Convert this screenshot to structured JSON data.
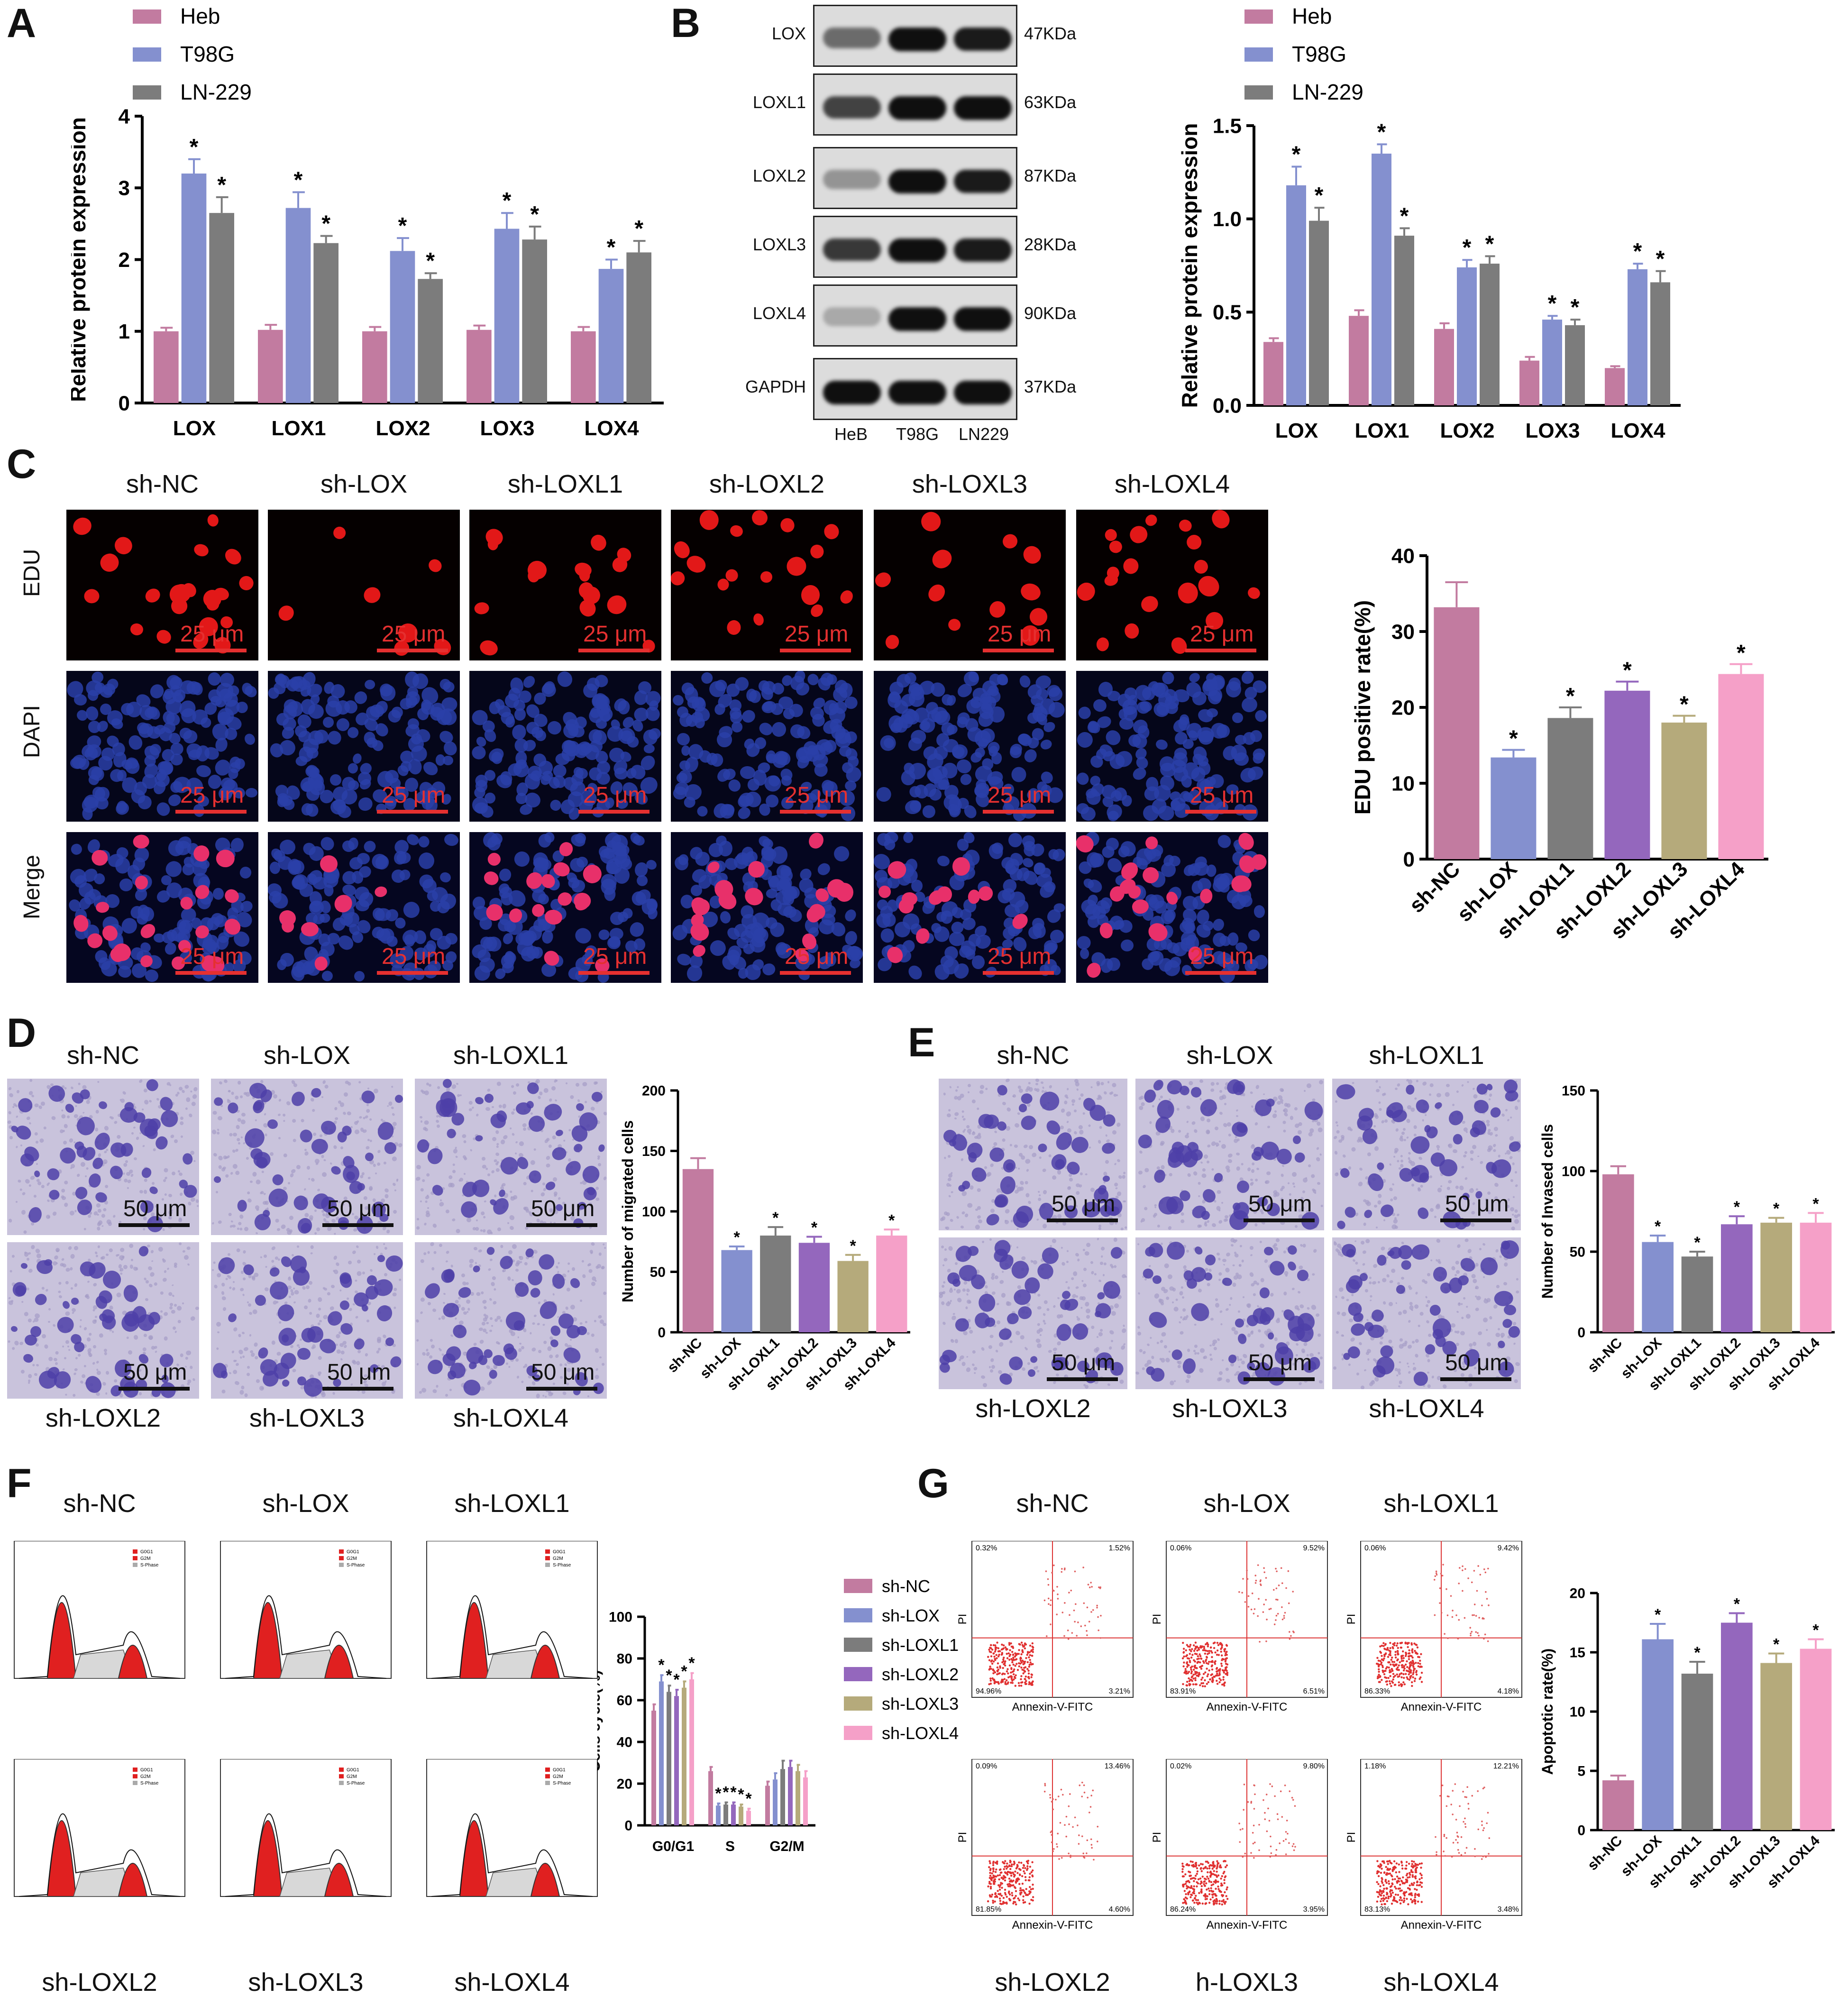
{
  "panels": {
    "A": "A",
    "B": "B",
    "C": "C",
    "D": "D",
    "E": "E",
    "F": "F",
    "G": "G"
  },
  "labels": {
    "scale25": "25 μm",
    "scale50": "50 μm",
    "row_edu": "EDU",
    "row_dapi": "DAPI",
    "row_merge": "Merge",
    "groups": [
      "sh-NC",
      "sh-LOX",
      "sh-LOXL1",
      "sh-LOXL2",
      "sh-LOXL3",
      "sh-LOXL4"
    ],
    "g_bottom_labels": [
      "sh-LOXL2",
      "h-LOXL3",
      "sh-LOXL4"
    ],
    "flow_x": "Annexin-V-FITC",
    "flow_y": "PI",
    "flow_quadrants": [
      [
        "0.32%",
        "1.52%",
        "94.96%",
        "3.21%"
      ],
      [
        "0.06%",
        "9.52%",
        "83.91%",
        "6.51%"
      ],
      [
        "0.06%",
        "9.42%",
        "86.33%",
        "4.18%"
      ],
      [
        "0.09%",
        "13.46%",
        "81.85%",
        "4.60%"
      ],
      [
        "0.02%",
        "9.80%",
        "86.24%",
        "3.95%"
      ],
      [
        "1.18%",
        "12.21%",
        "83.13%",
        "3.48%"
      ]
    ],
    "cc_legend": [
      "G0G1",
      "G2M",
      "S-Phase"
    ]
  },
  "western": {
    "proteins": [
      "LOX",
      "LOXL1",
      "LOXL2",
      "LOXL3",
      "LOXL4",
      "GAPDH"
    ],
    "sizes": [
      "47KDa",
      "63KDa",
      "87KDa",
      "28KDa",
      "90KDa",
      "37KDa"
    ],
    "lanes": [
      "HeB",
      "T98G",
      "LN229"
    ]
  },
  "chart_data": [
    {
      "id": "A",
      "type": "bar",
      "categories": [
        "LOX",
        "LOX1",
        "LOX2",
        "LOX3",
        "LOX4"
      ],
      "series": [
        {
          "name": "Heb",
          "values": [
            1.0,
            1.02,
            1.0,
            1.02,
            1.0
          ],
          "err": [
            0.05,
            0.07,
            0.06,
            0.06,
            0.06
          ]
        },
        {
          "name": "T98G",
          "values": [
            3.2,
            2.72,
            2.12,
            2.43,
            1.87
          ],
          "err": [
            0.2,
            0.22,
            0.18,
            0.22,
            0.13
          ]
        },
        {
          "name": "LN-229",
          "values": [
            2.65,
            2.23,
            1.73,
            2.28,
            2.1
          ],
          "err": [
            0.22,
            0.1,
            0.08,
            0.18,
            0.16
          ]
        }
      ],
      "sig": [
        [
          false,
          true,
          true
        ],
        [
          false,
          true,
          true
        ],
        [
          false,
          true,
          true
        ],
        [
          false,
          true,
          true
        ],
        [
          false,
          true,
          true
        ]
      ],
      "ylabel": "Relative protein expression",
      "ylim": [
        0,
        4
      ],
      "yticks": [
        0,
        1,
        2,
        3,
        4
      ],
      "colors": [
        "#c27ba0",
        "#8490cf",
        "#7c7c7c"
      ],
      "legend": "top-left"
    },
    {
      "id": "B",
      "type": "bar",
      "categories": [
        "LOX",
        "LOX1",
        "LOX2",
        "LOX3",
        "LOX4"
      ],
      "series": [
        {
          "name": "Heb",
          "values": [
            0.34,
            0.48,
            0.41,
            0.24,
            0.2
          ],
          "err": [
            0.02,
            0.03,
            0.03,
            0.02,
            0.01
          ]
        },
        {
          "name": "T98G",
          "values": [
            1.18,
            1.35,
            0.74,
            0.46,
            0.73
          ],
          "err": [
            0.1,
            0.05,
            0.04,
            0.02,
            0.03
          ]
        },
        {
          "name": "LN-229",
          "values": [
            0.99,
            0.91,
            0.76,
            0.43,
            0.66
          ],
          "err": [
            0.07,
            0.04,
            0.04,
            0.03,
            0.06
          ]
        }
      ],
      "sig": [
        [
          false,
          true,
          true
        ],
        [
          false,
          true,
          true
        ],
        [
          false,
          true,
          true
        ],
        [
          false,
          true,
          true
        ],
        [
          false,
          true,
          true
        ]
      ],
      "ylabel": "Relative protein expression",
      "ylim": [
        0,
        1.5
      ],
      "yticks": [
        "0.0",
        "0.5",
        "1.0",
        "1.5"
      ],
      "colors": [
        "#c27ba0",
        "#8490cf",
        "#7c7c7c"
      ],
      "legend": "top-left"
    },
    {
      "id": "C",
      "type": "bar",
      "categories": [
        "sh-NC",
        "sh-LOX",
        "sh-LOXL1",
        "sh-LOXL2",
        "sh-LOXL3",
        "sh-LOXL4"
      ],
      "values": [
        33.2,
        13.4,
        18.6,
        22.2,
        18.0,
        24.4
      ],
      "err": [
        3.3,
        1.0,
        1.4,
        1.2,
        0.9,
        1.3
      ],
      "sig": [
        false,
        true,
        true,
        true,
        true,
        true
      ],
      "ylabel": "EDU positive rate(%)",
      "ylim": [
        0,
        40
      ],
      "yticks": [
        0,
        10,
        20,
        30,
        40
      ],
      "colors": [
        "#c27ba0",
        "#8490cf",
        "#7c7c7c",
        "#9467bd",
        "#b5aa7b",
        "#f5a0c8"
      ]
    },
    {
      "id": "D",
      "type": "bar",
      "categories": [
        "sh-NC",
        "sh-LOX",
        "sh-LOXL1",
        "sh-LOXL2",
        "sh-LOXL3",
        "sh-LOXL4"
      ],
      "values": [
        135,
        68,
        80,
        74,
        59,
        80
      ],
      "err": [
        9,
        3,
        7,
        5,
        5,
        5
      ],
      "sig": [
        false,
        true,
        true,
        true,
        true,
        true
      ],
      "ylabel": "Number of migrated cells",
      "ylim": [
        0,
        200
      ],
      "yticks": [
        0,
        50,
        100,
        150,
        200
      ],
      "colors": [
        "#c27ba0",
        "#8490cf",
        "#7c7c7c",
        "#9467bd",
        "#b5aa7b",
        "#f5a0c8"
      ]
    },
    {
      "id": "E",
      "type": "bar",
      "categories": [
        "sh-NC",
        "sh-LOX",
        "sh-LOXL1",
        "sh-LOXL2",
        "sh-LOXL3",
        "sh-LOXL4"
      ],
      "values": [
        98,
        56,
        47,
        67,
        68,
        68
      ],
      "err": [
        5,
        4,
        3,
        5,
        3,
        6
      ],
      "sig": [
        false,
        true,
        true,
        true,
        true,
        true
      ],
      "ylabel": "Number of Invased cells",
      "ylim": [
        0,
        150
      ],
      "yticks": [
        0,
        50,
        100,
        150
      ],
      "colors": [
        "#c27ba0",
        "#8490cf",
        "#7c7c7c",
        "#9467bd",
        "#b5aa7b",
        "#f5a0c8"
      ]
    },
    {
      "id": "F",
      "type": "bar",
      "categories": [
        "G0/G1",
        "S",
        "G2/M"
      ],
      "series": [
        {
          "name": "sh-NC",
          "values": [
            55,
            26,
            19
          ],
          "err": [
            3,
            2,
            2
          ]
        },
        {
          "name": "sh-LOX",
          "values": [
            69,
            9.5,
            22
          ],
          "err": [
            3,
            1,
            3
          ]
        },
        {
          "name": "sh-LOXL1",
          "values": [
            64,
            10,
            27
          ],
          "err": [
            3,
            1,
            4
          ]
        },
        {
          "name": "sh-LOXL2",
          "values": [
            62,
            10,
            28
          ],
          "err": [
            3,
            1,
            3
          ]
        },
        {
          "name": "sh-LOXL3",
          "values": [
            66,
            9,
            26
          ],
          "err": [
            3,
            1,
            3
          ]
        },
        {
          "name": "sh-LOXL4",
          "values": [
            70,
            7,
            23
          ],
          "err": [
            3,
            1,
            3
          ]
        }
      ],
      "sig": [
        [
          false,
          true,
          true,
          true,
          true,
          true
        ],
        [
          false,
          true,
          true,
          true,
          true,
          true
        ],
        [
          false,
          false,
          false,
          false,
          false,
          false
        ]
      ],
      "ylabel": "Cells cycle(%)",
      "ylim": [
        0,
        100
      ],
      "yticks": [
        0,
        20,
        40,
        60,
        80,
        100
      ],
      "colors": [
        "#c27ba0",
        "#8490cf",
        "#7c7c7c",
        "#9467bd",
        "#b5aa7b",
        "#f5a0c8"
      ],
      "legend": "top-right"
    },
    {
      "id": "G",
      "type": "bar",
      "categories": [
        "sh-NC",
        "sh-LOX",
        "sh-LOXL1",
        "sh-LOXL2",
        "sh-LOXL3",
        "sh-LOXL4"
      ],
      "values": [
        4.2,
        16.1,
        13.2,
        17.5,
        14.1,
        15.3
      ],
      "err": [
        0.4,
        1.3,
        1.0,
        0.8,
        0.8,
        0.8
      ],
      "sig": [
        false,
        true,
        true,
        true,
        true,
        true
      ],
      "ylabel": "Apoptotic rate(%)",
      "ylim": [
        0,
        20
      ],
      "yticks": [
        0,
        5,
        10,
        15,
        20
      ],
      "colors": [
        "#c27ba0",
        "#8490cf",
        "#7c7c7c",
        "#9467bd",
        "#b5aa7b",
        "#f5a0c8"
      ]
    }
  ]
}
